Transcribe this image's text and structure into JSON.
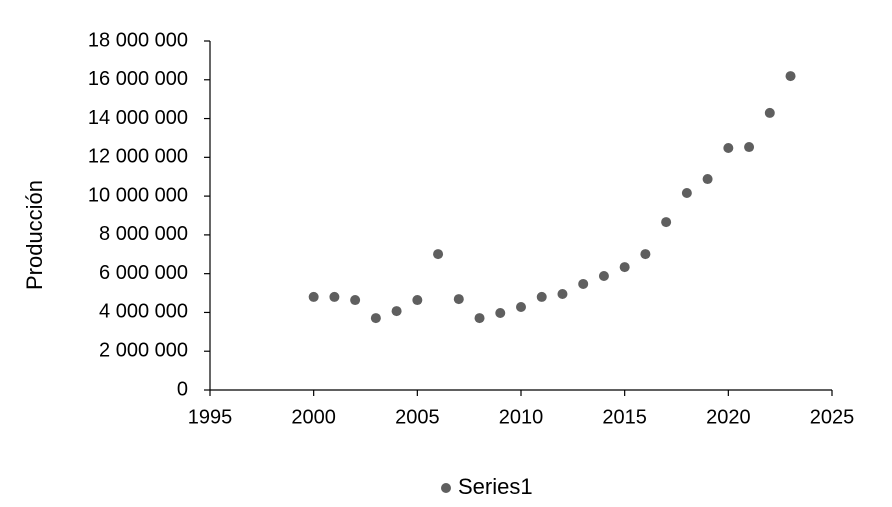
{
  "chart_data": {
    "type": "scatter",
    "y_label": "Producción",
    "x": [
      2000,
      2001,
      2002,
      2003,
      2004,
      2005,
      2006,
      2007,
      2008,
      2009,
      2010,
      2011,
      2012,
      2013,
      2014,
      2015,
      2016,
      2017,
      2018,
      2019,
      2020,
      2021,
      2022,
      2023
    ],
    "series": [
      {
        "name": "Series1",
        "color": "#5f5f5f",
        "values": [
          4800000,
          4800000,
          4640000,
          3710000,
          4070000,
          4640000,
          7010000,
          4690000,
          3710000,
          3970000,
          4280000,
          4800000,
          4950000,
          5470000,
          5880000,
          6340000,
          7010000,
          8660000,
          10160000,
          10880000,
          12480000,
          12530000,
          14290000,
          16190000
        ]
      }
    ],
    "xlim": [
      1995,
      2025
    ],
    "xticks": [
      1995,
      2000,
      2005,
      2010,
      2015,
      2020,
      2025
    ],
    "ylim": [
      0,
      18000000
    ],
    "yticks": [
      0,
      {
        "value": 2000000,
        "label": "2 000 000"
      },
      {
        "value": 4000000,
        "label": "4 000 000"
      },
      {
        "value": 6000000,
        "label": "6 000 000"
      },
      {
        "value": 8000000,
        "label": "8 000 000"
      },
      {
        "value": 10000000,
        "label": "10 000 000"
      },
      {
        "value": 12000000,
        "label": "12 000 000"
      },
      {
        "value": 14000000,
        "label": "14 000 000"
      },
      {
        "value": 16000000,
        "label": "16 000 000"
      },
      {
        "value": 18000000,
        "label": "18 000 000"
      }
    ],
    "grid": false,
    "legend": "bottom"
  }
}
